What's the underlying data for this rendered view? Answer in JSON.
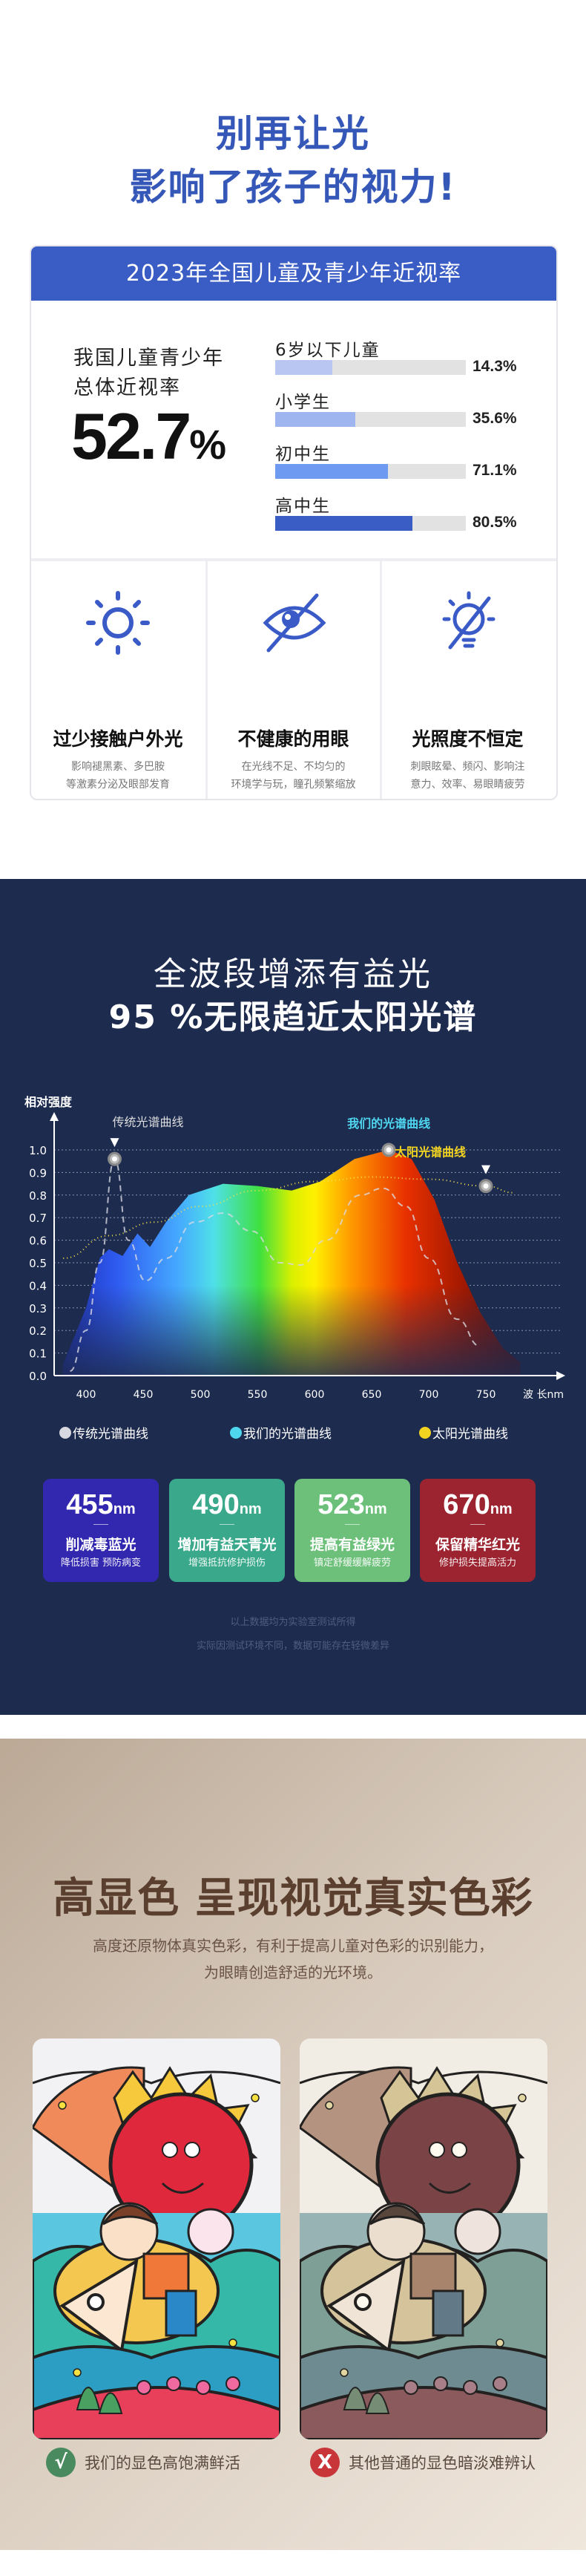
{
  "hero": {
    "line1": "别再让光",
    "line2": "影响了孩子的视力!",
    "color": "#3557b8"
  },
  "myopia": {
    "header": "2023年全国儿童及青少年近视率",
    "overall_label_1": "我国儿童青少年",
    "overall_label_2": "总体近视率",
    "overall_value": "52.7",
    "overall_unit": "%",
    "groups": [
      {
        "label": "6岁以下儿童",
        "value": "14.3%",
        "percent": 30,
        "color": "#b9c6f2"
      },
      {
        "label": "小学生",
        "value": "35.6%",
        "percent": 42,
        "color": "#9fb5f0"
      },
      {
        "label": "初中生",
        "value": "71.1%",
        "percent": 59,
        "color": "#6f9af2"
      },
      {
        "label": "高中生",
        "value": "80.5%",
        "percent": 72,
        "color": "#3a5cc5"
      }
    ],
    "causes": [
      {
        "icon": "sun-icon",
        "title": "过少接触户外光",
        "desc1": "影响褪黑素、多巴胺",
        "desc2": "等激素分泌及眼部发育"
      },
      {
        "icon": "eye-slash-icon",
        "title": "不健康的用眼",
        "desc1": "在光线不足、不均匀的",
        "desc2": "环境学与玩，瞳孔频繁缩放"
      },
      {
        "icon": "bulb-slash-icon",
        "title": "光照度不恒定",
        "desc1": "刺眼眩晕、频闪、影响注",
        "desc2": "意力、效率、易眼睛疲劳"
      }
    ]
  },
  "spectrum": {
    "title1": "全波段增添有益光",
    "title2": "95 %无限趋近太阳光谱",
    "wavelengths": [
      {
        "value": "455",
        "unit": "nm",
        "title": "削减毒蓝光",
        "sub": "降低损害 预防病变",
        "color": "#3228b0"
      },
      {
        "value": "490",
        "unit": "nm",
        "title": "增加有益天青光",
        "sub": "增强抵抗修护损伤",
        "color": "#3aa88a"
      },
      {
        "value": "523",
        "unit": "nm",
        "title": "提高有益绿光",
        "sub": "镇定舒缓缓解疲劳",
        "color": "#6cc07a"
      },
      {
        "value": "670",
        "unit": "nm",
        "title": "保留精华红光",
        "sub": "修护损失提高活力",
        "color": "#9c2430"
      }
    ],
    "disclaimer1": "以上数据均为实验室测试所得",
    "disclaimer2": "实际因测试环境不同，数据可能存在轻微差异"
  },
  "chart_data": {
    "type": "line",
    "ylabel": "相对强度",
    "xlabel": "波 长nm",
    "xlim": [
      380,
      780
    ],
    "ylim": [
      0,
      1.0
    ],
    "y_ticks": [
      "0.0",
      "0.1",
      "0.2",
      "0.3",
      "0.4",
      "0.5",
      "0.6",
      "0.7",
      "0.8",
      "0.9",
      "1.0"
    ],
    "x_ticks": [
      400,
      450,
      500,
      550,
      600,
      650,
      700,
      750
    ],
    "grid": "dotted horizontal",
    "series": [
      {
        "name": "我们的光谱曲线",
        "style": "filled-spectrum",
        "color": "#4fd6ef",
        "points": [
          [
            380,
            0.05
          ],
          [
            400,
            0.3
          ],
          [
            412,
            0.52
          ],
          [
            420,
            0.56
          ],
          [
            432,
            0.53
          ],
          [
            445,
            0.63
          ],
          [
            456,
            0.57
          ],
          [
            470,
            0.68
          ],
          [
            490,
            0.8
          ],
          [
            520,
            0.85
          ],
          [
            550,
            0.84
          ],
          [
            580,
            0.82
          ],
          [
            605,
            0.86
          ],
          [
            635,
            0.96
          ],
          [
            665,
            1.0
          ],
          [
            685,
            0.96
          ],
          [
            705,
            0.78
          ],
          [
            725,
            0.5
          ],
          [
            745,
            0.28
          ],
          [
            765,
            0.12
          ],
          [
            780,
            0.06
          ]
        ],
        "annotation": {
          "text": "我们的光谱曲线",
          "at": [
            665,
            1.0
          ]
        }
      },
      {
        "name": "传统光谱曲线",
        "style": "dashed",
        "color": "#d8d8e0",
        "points": [
          [
            386,
            0.02
          ],
          [
            400,
            0.2
          ],
          [
            412,
            0.5
          ],
          [
            425,
            0.96
          ],
          [
            437,
            0.6
          ],
          [
            452,
            0.42
          ],
          [
            470,
            0.52
          ],
          [
            495,
            0.68
          ],
          [
            520,
            0.72
          ],
          [
            545,
            0.64
          ],
          [
            570,
            0.5
          ],
          [
            588,
            0.49
          ],
          [
            610,
            0.6
          ],
          [
            640,
            0.8
          ],
          [
            660,
            0.83
          ],
          [
            680,
            0.75
          ],
          [
            700,
            0.52
          ],
          [
            725,
            0.25
          ],
          [
            745,
            0.13
          ]
        ],
        "annotation": {
          "text": "传统光谱曲线",
          "at": [
            425,
            0.96
          ]
        }
      },
      {
        "name": "太阳光谱曲线",
        "style": "dotted",
        "color": "#f2e24a",
        "points": [
          [
            380,
            0.52
          ],
          [
            420,
            0.62
          ],
          [
            460,
            0.68
          ],
          [
            500,
            0.75
          ],
          [
            550,
            0.82
          ],
          [
            600,
            0.86
          ],
          [
            650,
            0.88
          ],
          [
            700,
            0.87
          ],
          [
            750,
            0.84
          ],
          [
            775,
            0.81
          ]
        ],
        "annotation": {
          "text": "太阳光谱曲线",
          "at": [
            750,
            0.84
          ]
        }
      }
    ],
    "legend": [
      {
        "label": "传统光谱曲线",
        "color": "#d8d8e0"
      },
      {
        "label": "我们的光谱曲线",
        "color": "#4fd6ef"
      },
      {
        "label": "太阳光谱曲线",
        "color": "#f2d320"
      }
    ],
    "legend_position": "bottom"
  },
  "color_section": {
    "title": "高显色 呈现视觉真实色彩",
    "sub1": "高度还原物体真实色彩，有利于提高儿童对色彩的识别能力，",
    "sub2": "为眼睛创造舒适的光环境。",
    "good_caption": "我们的显色高饱满鲜活",
    "bad_caption": "其他普通的显色暗淡难辨认",
    "good_mark": "√",
    "bad_mark": "X"
  }
}
